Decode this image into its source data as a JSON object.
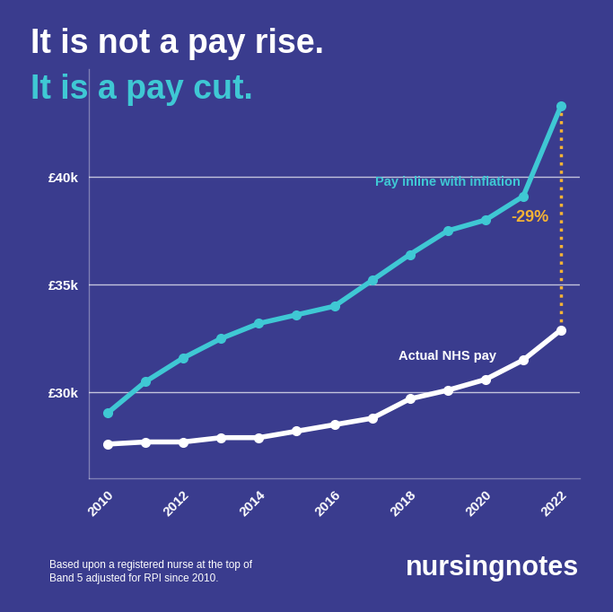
{
  "chart_data": {
    "type": "line",
    "title": "It is not a pay rise.",
    "subtitle": "It is a pay cut.",
    "x": [
      2010,
      2011,
      2012,
      2013,
      2014,
      2015,
      2016,
      2017,
      2018,
      2019,
      2020,
      2021,
      2022
    ],
    "series": [
      {
        "name": "Pay inline with inflation",
        "color": "#3fc8d4",
        "marker": "o",
        "line_style": "solid",
        "values": [
          29.05,
          30.5,
          31.6,
          32.5,
          33.2,
          33.6,
          34.0,
          35.2,
          36.4,
          37.5,
          38.0,
          39.1,
          43.3
        ]
      },
      {
        "name": "Actual NHS pay",
        "color": "#ffffff",
        "marker": "o",
        "line_style": "solid",
        "values": [
          27.6,
          27.7,
          27.7,
          27.9,
          27.9,
          28.2,
          28.5,
          28.8,
          29.7,
          30.1,
          30.6,
          31.5,
          32.9
        ]
      }
    ],
    "annotations": [
      {
        "text": "-29%",
        "x": 2022,
        "color": "#f5b335"
      }
    ],
    "xlim": [
      2009.5,
      2022.5
    ],
    "xticks": [
      2010,
      2012,
      2014,
      2016,
      2018,
      2020,
      2022
    ],
    "ylim": [
      26,
      45
    ],
    "yticks": [
      {
        "value": 30,
        "label": "£30k"
      },
      {
        "value": 35,
        "label": "£35k"
      },
      {
        "value": 40,
        "label": "£40k"
      }
    ],
    "grid": true,
    "footnote": "Based upon a registered nurse at the top of\nBand 5 adjusted for RPI since 2010.",
    "source": "nursingnotes"
  }
}
